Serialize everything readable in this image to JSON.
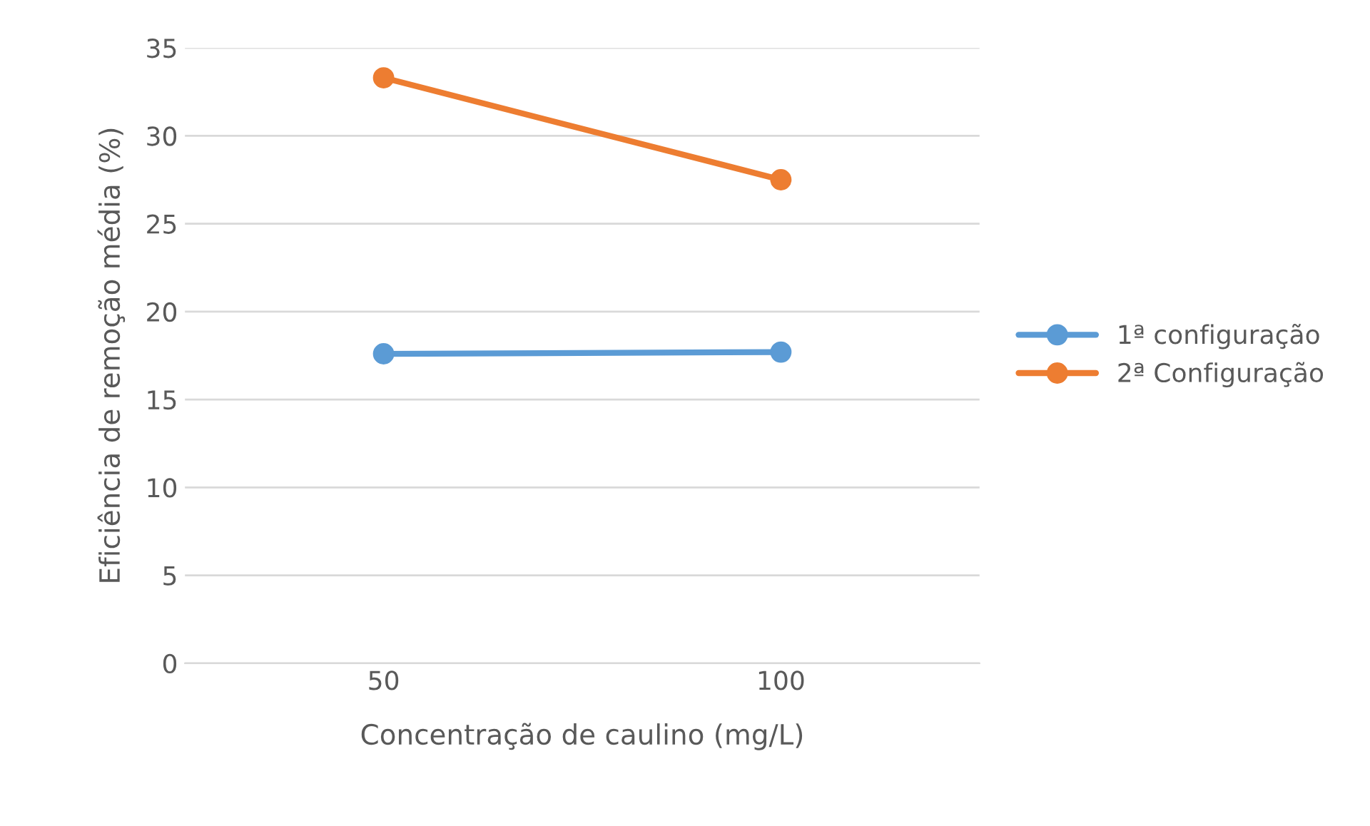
{
  "chart_data": {
    "type": "line",
    "xlabel": "Concentração de caulino (mg/L)",
    "ylabel": "Eficiência de remoção média (%)",
    "categories": [
      "50",
      "100"
    ],
    "series": [
      {
        "name": "1ª configuração",
        "color": "#5b9bd5",
        "values": [
          17.6,
          17.7
        ]
      },
      {
        "name": "2ª Configuração",
        "color": "#ed7d31",
        "values": [
          33.3,
          27.5
        ]
      }
    ],
    "ylim": [
      0,
      35
    ],
    "yticks": [
      0,
      5,
      10,
      15,
      20,
      25,
      30,
      35
    ],
    "grid": "y",
    "legend": "right",
    "marker": "circle",
    "line_style": "solid"
  }
}
